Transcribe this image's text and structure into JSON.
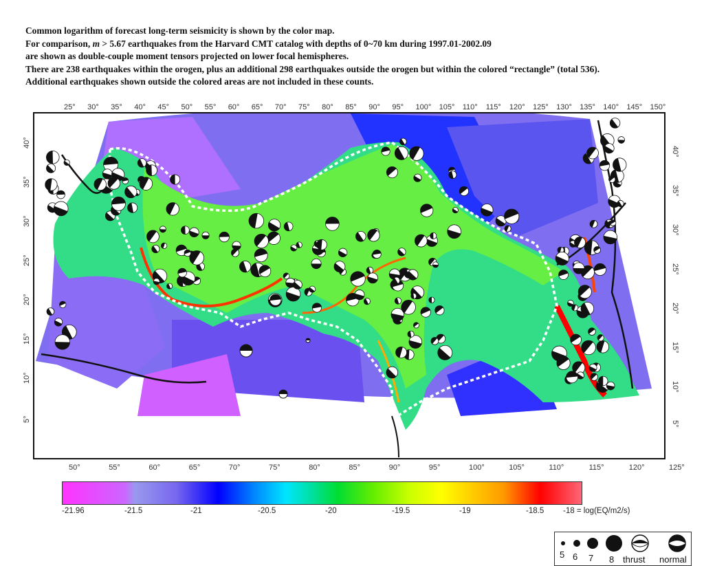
{
  "caption": {
    "line1": "Common logarithm of forecast long-term seismicity is shown by the color map.",
    "line2_a": "For comparison, ",
    "line2_m": "m",
    "line2_b": " > 5.67 earthquakes from the Harvard CMT catalog with depths of  0~70 km during 1997.01-2002.09",
    "line3": "are shown as double-couple moment tensors projected on lower focal hemispheres.",
    "line4": "There are 238 earthquakes within the orogen, plus an additional 298 earthquakes outside the orogen but within the colored “rectangle” (total 536).",
    "line5": "Additional earthquakes shown outside the colored areas are not included in these counts."
  },
  "top_lon_labels": [
    "25°",
    "30°",
    "35°",
    "40°",
    "45°",
    "50°",
    "55°",
    "60°",
    "65°",
    "70°",
    "75°",
    "80°",
    "85°",
    "90°",
    "95°",
    "100°",
    "105°",
    "110°",
    "115°",
    "120°",
    "125°",
    "130°",
    "135°",
    "140°",
    "145°",
    "150°"
  ],
  "bottom_lon_labels": [
    "50°",
    "55°",
    "60°",
    "65°",
    "70°",
    "75°",
    "80°",
    "85°",
    "90°",
    "95°",
    "100°",
    "105°",
    "110°",
    "115°",
    "120°",
    "125°"
  ],
  "left_lat_labels": [
    "40°",
    "35°",
    "30°",
    "25°",
    "20°",
    "15°",
    "10°",
    "5°"
  ],
  "right_lat_labels": [
    "40°",
    "35°",
    "30°",
    "25°",
    "20°",
    "15°",
    "10°",
    "5°"
  ],
  "legend": {
    "mag5": "5",
    "mag6": "6",
    "mag7": "7",
    "mag8": "8",
    "thrust": "thrust",
    "normal": "normal"
  },
  "colorbar": {
    "ticks": [
      "-21.96",
      "-21.5",
      "-21",
      "-20.5",
      "-20",
      "-19.5",
      "-19",
      "-18.5"
    ],
    "end_label": "-18 = log(EQ/m2/s)",
    "stops": [
      "#ff33ff",
      "#9999ee",
      "#0000ff",
      "#00e5ff",
      "#00dd33",
      "#ccff00",
      "#ffff00",
      "#ff9900",
      "#ff0000",
      "#ff6677"
    ]
  }
}
